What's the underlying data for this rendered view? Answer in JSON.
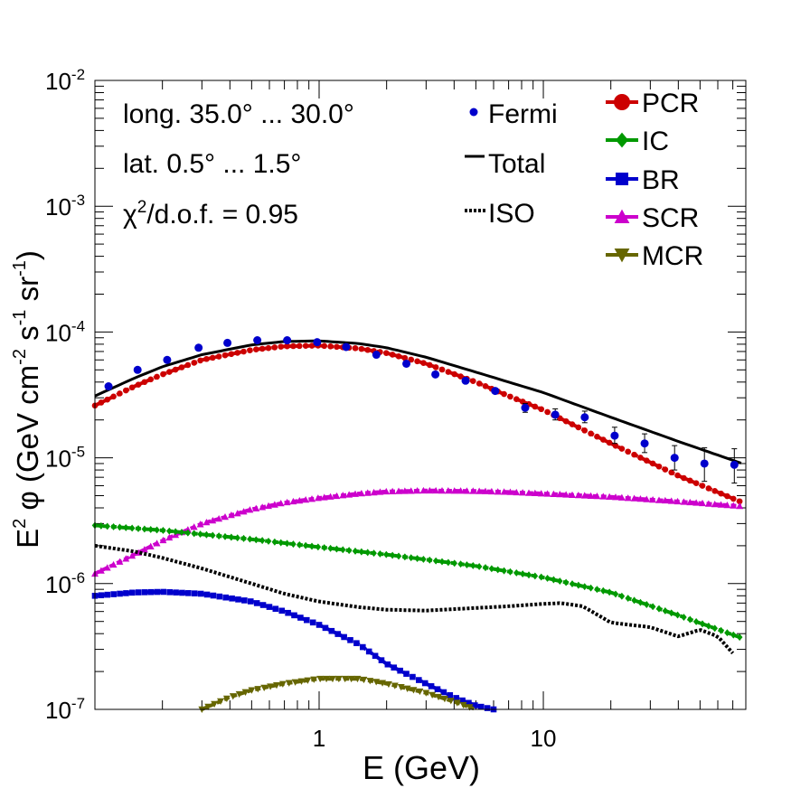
{
  "chart_data": {
    "type": "line",
    "x_scale": "log",
    "y_scale": "log",
    "xlim": [
      0.1,
      80
    ],
    "ylim": [
      1e-07,
      0.01
    ],
    "xlabel": "E (GeV)",
    "ylabel": "E^2 φ (GeV cm^-2 s^-1 sr^-1)",
    "ylabel_parts": {
      "base": "E",
      "sq": "2",
      "phi": " φ (GeV cm",
      "m2": "-2",
      "s": " s",
      "m1a": "-1",
      "sr": " sr",
      "m1b": "-1",
      "close": ")"
    },
    "x_tick_labels": [
      {
        "value": 1,
        "label": "1"
      },
      {
        "value": 10,
        "label": "10"
      }
    ],
    "y_tick_labels": [
      {
        "value": 1e-07,
        "base": "10",
        "exp": "-7"
      },
      {
        "value": 1e-06,
        "base": "10",
        "exp": "-6"
      },
      {
        "value": 1e-05,
        "base": "10",
        "exp": "-5"
      },
      {
        "value": 0.0001,
        "base": "10",
        "exp": "-4"
      },
      {
        "value": 0.001,
        "base": "10",
        "exp": "-3"
      },
      {
        "value": 0.01,
        "base": "10",
        "exp": "-2"
      }
    ],
    "annotations": {
      "longitude": "long. 35.0° ... 30.0°",
      "latitude": "lat. 0.5° ... 1.5°",
      "chi2_prefix": "χ",
      "chi2_sup": "2",
      "chi2_rest": "/d.o.f. = 0.95"
    },
    "legend_left": [
      {
        "key": "fermi",
        "label": "Fermi"
      },
      {
        "key": "total",
        "label": "Total"
      },
      {
        "key": "iso",
        "label": "ISO"
      }
    ],
    "legend_right": [
      {
        "key": "pcr",
        "label": "PCR"
      },
      {
        "key": "ic",
        "label": "IC"
      },
      {
        "key": "br",
        "label": "BR"
      },
      {
        "key": "scr",
        "label": "SCR"
      },
      {
        "key": "mcr",
        "label": "MCR"
      }
    ],
    "series": [
      {
        "key": "total",
        "name": "Total",
        "color": "#000000",
        "style": "solid",
        "x": [
          0.1,
          0.15,
          0.2,
          0.3,
          0.5,
          0.7,
          1.0,
          1.5,
          2.0,
          3.0,
          5.0,
          7.0,
          10,
          20,
          40,
          80
        ],
        "y": [
          3.1e-05,
          4.3e-05,
          5.3e-05,
          6.6e-05,
          7.9e-05,
          8.4e-05,
          8.5e-05,
          8.1e-05,
          7.5e-05,
          6.3e-05,
          4.8e-05,
          4e-05,
          3.3e-05,
          2.1e-05,
          1.35e-05,
          8.8e-06
        ]
      },
      {
        "key": "pcr",
        "name": "PCR",
        "color": "#cc0000",
        "style": "marker",
        "x": [
          0.1,
          0.15,
          0.2,
          0.3,
          0.5,
          0.7,
          1.0,
          1.5,
          2.0,
          3.0,
          5.0,
          7.0,
          10,
          20,
          40,
          80
        ],
        "y": [
          2.6e-05,
          3.7e-05,
          4.6e-05,
          6e-05,
          7.2e-05,
          7.7e-05,
          7.8e-05,
          7.4e-05,
          6.8e-05,
          5.6e-05,
          4e-05,
          3.1e-05,
          2.4e-05,
          1.3e-05,
          7.2e-06,
          4.3e-06
        ]
      },
      {
        "key": "scr",
        "name": "SCR",
        "color": "#cc00cc",
        "style": "marker",
        "x": [
          0.1,
          0.15,
          0.2,
          0.3,
          0.5,
          0.7,
          1.0,
          1.5,
          2.0,
          3.0,
          5.0,
          7.0,
          10,
          20,
          40,
          80
        ],
        "y": [
          1.2e-06,
          1.7e-06,
          2.2e-06,
          3e-06,
          3.9e-06,
          4.4e-06,
          4.8e-06,
          5.2e-06,
          5.4e-06,
          5.5e-06,
          5.45e-06,
          5.35e-06,
          5.2e-06,
          4.9e-06,
          4.5e-06,
          4.1e-06
        ]
      },
      {
        "key": "ic",
        "name": "IC",
        "color": "#009900",
        "style": "marker",
        "x": [
          0.1,
          0.2,
          0.5,
          1.0,
          2.0,
          5.0,
          10,
          20,
          40,
          80
        ],
        "y": [
          2.9e-06,
          2.65e-06,
          2.25e-06,
          1.95e-06,
          1.7e-06,
          1.38e-06,
          1.12e-06,
          8.5e-07,
          5.6e-07,
          3.6e-07
        ]
      },
      {
        "key": "iso",
        "name": "ISO",
        "color": "#000000",
        "style": "dotted",
        "x": [
          0.1,
          0.15,
          0.2,
          0.3,
          0.5,
          0.7,
          1.0,
          1.5,
          2.0,
          3.0,
          5.0,
          7.0,
          10,
          12,
          15,
          20,
          30,
          40,
          50,
          60,
          70
        ],
        "y": [
          2e-06,
          1.8e-06,
          1.6e-06,
          1.32e-06,
          1e-06,
          8.3e-07,
          7.2e-07,
          6.5e-07,
          6.2e-07,
          6.1e-07,
          6.4e-07,
          6.6e-07,
          6.9e-07,
          7e-07,
          6.6e-07,
          4.9e-07,
          4.5e-07,
          3.8e-07,
          4.3e-07,
          3.8e-07,
          2.8e-07
        ]
      },
      {
        "key": "br",
        "name": "BR",
        "color": "#0000cc",
        "style": "marker",
        "x": [
          0.1,
          0.15,
          0.2,
          0.3,
          0.5,
          0.7,
          1.0,
          1.5,
          2.0,
          3.0,
          4.0,
          5.0,
          6.0
        ],
        "y": [
          8e-07,
          8.5e-07,
          8.6e-07,
          8.3e-07,
          7.2e-07,
          6e-07,
          4.7e-07,
          3.3e-07,
          2.3e-07,
          1.6e-07,
          1.25e-07,
          1.07e-07,
          1e-07
        ]
      },
      {
        "key": "mcr",
        "name": "MCR",
        "color": "#666600",
        "style": "marker",
        "x": [
          0.3,
          0.4,
          0.5,
          0.7,
          1.0,
          1.5,
          2.0,
          3.0,
          4.0,
          5.0
        ],
        "y": [
          1e-07,
          1.25e-07,
          1.42e-07,
          1.6e-07,
          1.75e-07,
          1.75e-07,
          1.6e-07,
          1.35e-07,
          1.15e-07,
          1e-07
        ]
      }
    ],
    "fermi_points": {
      "x": [
        0.115,
        0.155,
        0.21,
        0.29,
        0.39,
        0.53,
        0.72,
        0.98,
        1.32,
        1.8,
        2.45,
        3.3,
        4.5,
        6.1,
        8.3,
        11.3,
        15.3,
        20.8,
        28.3,
        38.5,
        52.3,
        71.1
      ],
      "y": [
        3.7e-05,
        5e-05,
        6e-05,
        7.5e-05,
        8.2e-05,
        8.6e-05,
        8.6e-05,
        8.3e-05,
        7.6e-05,
        6.6e-05,
        5.6e-05,
        4.6e-05,
        4.1e-05,
        3.4e-05,
        2.5e-05,
        2.2e-05,
        2.1e-05,
        1.5e-05,
        1.3e-05,
        1e-05,
        9e-06,
        8.8e-06
      ],
      "err_up": [
        1.5e-06,
        1.5e-06,
        1.5e-06,
        1.5e-06,
        1.5e-06,
        1.5e-06,
        1.5e-06,
        1.5e-06,
        1.5e-06,
        1.5e-06,
        1.5e-06,
        1.5e-06,
        1.5e-06,
        1.5e-06,
        2e-06,
        2.5e-06,
        2.5e-06,
        2.5e-06,
        2.5e-06,
        2.5e-06,
        3e-06,
        3e-06
      ],
      "err_dn": [
        1.5e-06,
        1.5e-06,
        1.5e-06,
        1.5e-06,
        1.5e-06,
        1.5e-06,
        1.5e-06,
        1.5e-06,
        1.5e-06,
        1.5e-06,
        1.5e-06,
        1.5e-06,
        1.5e-06,
        1.5e-06,
        2e-06,
        2e-06,
        2e-06,
        2e-06,
        2e-06,
        2e-06,
        2.5e-06,
        2.5e-06
      ]
    },
    "colors": {
      "fermi": "#0000cc",
      "total": "#000000",
      "iso": "#000000",
      "pcr": "#cc0000",
      "ic": "#009900",
      "br": "#0000cc",
      "scr": "#cc00cc",
      "mcr": "#666600"
    }
  }
}
